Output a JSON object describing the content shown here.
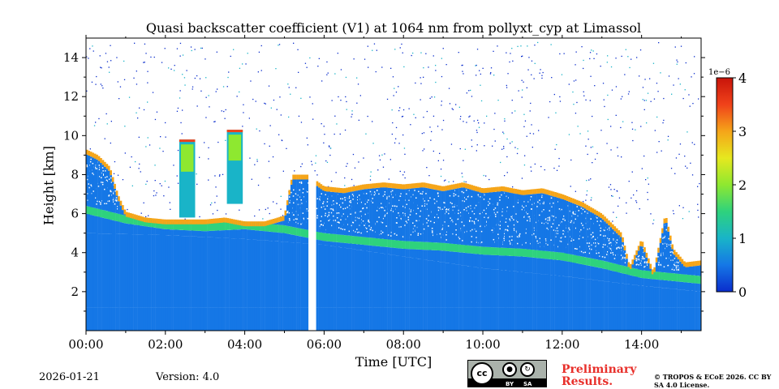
{
  "chart_data": {
    "type": "heatmap",
    "title": "Quasi backscatter coefficient (V1) at 1064 nm from pollyxt_cyp at Limassol",
    "xlabel": "Time [UTC]",
    "ylabel": "Height [km]",
    "x_range_hours": [
      0,
      15.5
    ],
    "y_range_km": [
      0,
      15
    ],
    "x_ticks": [
      0,
      2,
      4,
      6,
      8,
      10,
      12,
      14
    ],
    "x_tick_labels": [
      "00:00",
      "02:00",
      "04:00",
      "06:00",
      "08:00",
      "10:00",
      "12:00",
      "14:00"
    ],
    "y_ticks": [
      2,
      4,
      6,
      8,
      10,
      12,
      14
    ],
    "y_tick_labels": [
      "2",
      "4",
      "6",
      "8",
      "10",
      "12",
      "14"
    ],
    "colorbar": {
      "range": [
        0,
        4
      ],
      "ticks": [
        0,
        1,
        2,
        3,
        4
      ],
      "tick_labels": [
        "0",
        "1",
        "2",
        "3",
        "4"
      ],
      "scale_label": "1e−6",
      "colormap": [
        "#0a2dcc",
        "#1577e6",
        "#19b4c8",
        "#2ed27d",
        "#8ee830",
        "#e6e81f",
        "#f5a519",
        "#f0421a",
        "#c8140a"
      ]
    },
    "data_gap_hours": [
      5.62,
      5.78
    ],
    "cloud_top_km": [
      [
        0.0,
        9.3
      ],
      [
        0.3,
        9.0
      ],
      [
        0.6,
        8.4
      ],
      [
        0.8,
        7.0
      ],
      [
        1.0,
        6.1
      ],
      [
        1.5,
        5.8
      ],
      [
        2.0,
        5.7
      ],
      [
        2.5,
        5.7
      ],
      [
        3.0,
        5.7
      ],
      [
        3.5,
        5.8
      ],
      [
        4.0,
        5.6
      ],
      [
        4.5,
        5.6
      ],
      [
        5.0,
        5.9
      ],
      [
        5.2,
        8.0
      ],
      [
        5.6,
        8.0
      ],
      [
        6.0,
        7.4
      ],
      [
        6.5,
        7.3
      ],
      [
        7.0,
        7.5
      ],
      [
        7.5,
        7.6
      ],
      [
        8.0,
        7.5
      ],
      [
        8.5,
        7.6
      ],
      [
        9.0,
        7.4
      ],
      [
        9.5,
        7.6
      ],
      [
        10.0,
        7.3
      ],
      [
        10.5,
        7.4
      ],
      [
        11.0,
        7.2
      ],
      [
        11.5,
        7.3
      ],
      [
        12.0,
        7.0
      ],
      [
        12.5,
        6.6
      ],
      [
        13.0,
        6.0
      ],
      [
        13.5,
        5.0
      ],
      [
        13.7,
        3.3
      ],
      [
        14.0,
        4.7
      ],
      [
        14.3,
        3.0
      ],
      [
        14.6,
        6.0
      ],
      [
        14.8,
        4.2
      ],
      [
        15.1,
        3.5
      ],
      [
        15.5,
        3.6
      ]
    ],
    "layer_top_km": [
      [
        0.0,
        6.3
      ],
      [
        1.0,
        5.8
      ],
      [
        2.0,
        5.5
      ],
      [
        3.0,
        5.4
      ],
      [
        4.0,
        5.5
      ],
      [
        5.0,
        5.3
      ],
      [
        6.0,
        4.9
      ],
      [
        7.0,
        4.7
      ],
      [
        8.0,
        4.5
      ],
      [
        9.0,
        4.4
      ],
      [
        10.0,
        4.2
      ],
      [
        11.0,
        4.1
      ],
      [
        12.0,
        3.9
      ],
      [
        13.0,
        3.5
      ],
      [
        14.0,
        3.0
      ],
      [
        15.0,
        2.8
      ],
      [
        15.5,
        2.7
      ]
    ],
    "aerosol_top_km": [
      [
        0.0,
        5.0
      ],
      [
        2.0,
        4.9
      ],
      [
        4.0,
        4.7
      ],
      [
        6.0,
        4.4
      ],
      [
        8.0,
        3.8
      ],
      [
        10.0,
        3.2
      ],
      [
        12.0,
        2.8
      ],
      [
        14.0,
        2.3
      ],
      [
        15.5,
        2.0
      ]
    ],
    "isolated_clouds": [
      {
        "x": [
          2.35,
          2.75
        ],
        "y": [
          5.8,
          9.8
        ]
      },
      {
        "x": [
          3.55,
          3.95
        ],
        "y": [
          6.5,
          10.3
        ]
      }
    ]
  },
  "footer": {
    "date": "2026-01-21",
    "version": "Version: 4.0",
    "preliminary": "Preliminary Results.",
    "copyright": "© TROPOS & ECoE 2026. CC BY SA 4.0 License.",
    "cc_label_by": "BY",
    "cc_label_sa": "SA",
    "cc_text": "cc"
  }
}
